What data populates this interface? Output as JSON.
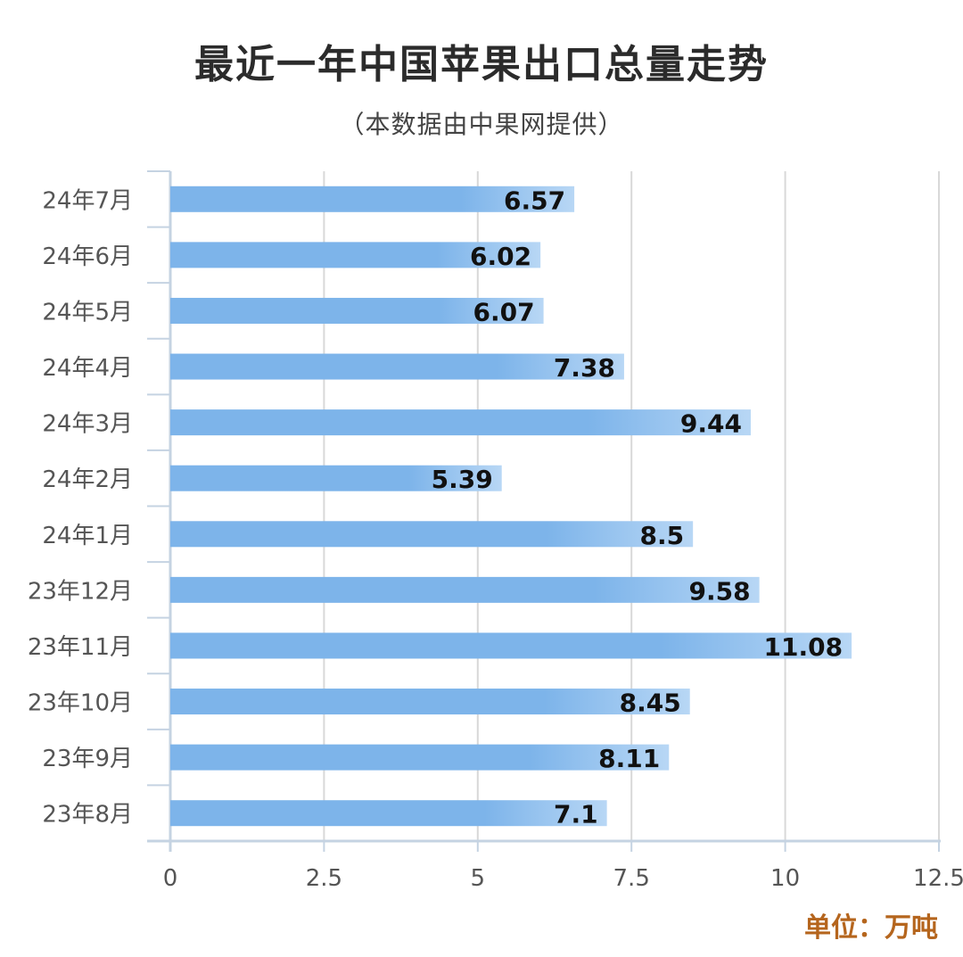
{
  "header": {
    "title": "最近一年中国苹果出口总量走势",
    "subtitle": "（本数据由中果网提供）"
  },
  "footer": {
    "unit": "单位：万吨"
  },
  "colors": {
    "bar": "#7db4ea",
    "bar_light": "#b8d7f5",
    "grid": "#d8d8d8",
    "axis": "#c5d3e2",
    "label": "#555555",
    "value": "#111111"
  },
  "chart_data": {
    "type": "bar",
    "orientation": "horizontal",
    "categories": [
      "24年7月",
      "24年6月",
      "24年5月",
      "24年4月",
      "24年3月",
      "24年2月",
      "24年1月",
      "23年12月",
      "23年11月",
      "23年10月",
      "23年9月",
      "23年8月"
    ],
    "values": [
      6.57,
      6.02,
      6.07,
      7.38,
      9.44,
      5.39,
      8.5,
      9.58,
      11.08,
      8.45,
      8.11,
      7.1
    ],
    "value_labels": [
      "6.57",
      "6.02",
      "6.07",
      "7.38",
      "9.44",
      "5.39",
      "8.5",
      "9.58",
      "11.08",
      "8.45",
      "8.11",
      "7.1"
    ],
    "xlim": [
      0,
      12.5
    ],
    "xticks": [
      0,
      2.5,
      5,
      7.5,
      10,
      12.5
    ],
    "xtick_labels": [
      "0",
      "2.5",
      "5",
      "7.5",
      "10",
      "12.5"
    ],
    "grid": true,
    "legend": "none"
  }
}
